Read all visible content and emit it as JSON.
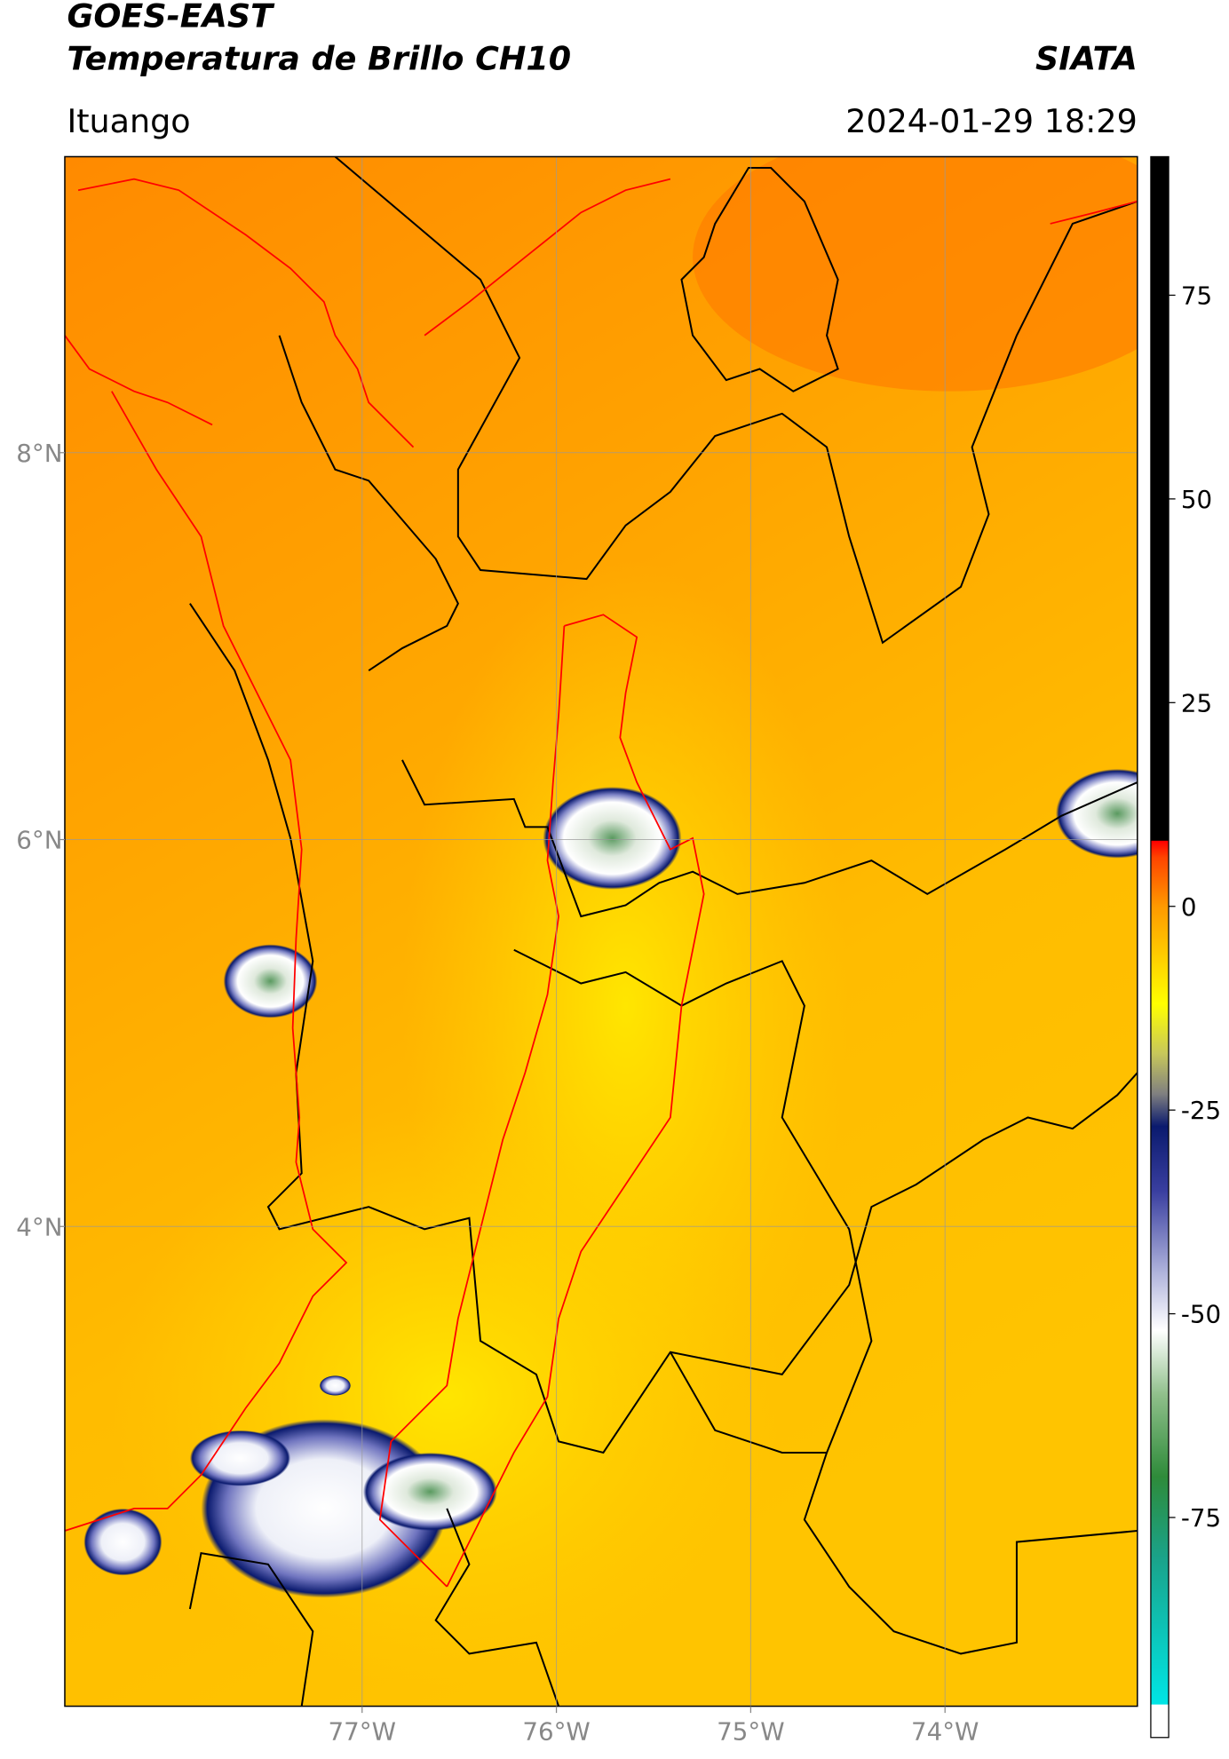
{
  "header": {
    "title": "GOES-EAST",
    "subtitle": "Temperatura de Brillo CH10",
    "brand": "SIATA",
    "location": "Ituango",
    "timestamp": "2024-01-29 18:29"
  },
  "map": {
    "lon_range": [
      -78.53,
      -73.01
    ],
    "lat_range": [
      1.52,
      9.53
    ],
    "lon_ticks": [
      {
        "value": -77,
        "label": "77°W"
      },
      {
        "value": -76,
        "label": "76°W"
      },
      {
        "value": -75,
        "label": "75°W"
      },
      {
        "value": -74,
        "label": "74°W"
      }
    ],
    "lat_ticks": [
      {
        "value": 8,
        "label": "8°N"
      },
      {
        "value": 6,
        "label": "6°N"
      },
      {
        "value": 4,
        "label": "4°N"
      }
    ],
    "grid": true
  },
  "colorbar": {
    "range": [
      -102,
      92
    ],
    "ticks": [
      75,
      50,
      25,
      0,
      -25,
      -50,
      -75
    ],
    "stops": [
      {
        "value": -102,
        "color": "#ffffff"
      },
      {
        "value": -98,
        "color": "#ffffff"
      },
      {
        "value": -97.9,
        "color": "#00e5e5"
      },
      {
        "value": -80,
        "color": "#1aa38a"
      },
      {
        "value": -70,
        "color": "#2e8b3a"
      },
      {
        "value": -60,
        "color": "#8fbf8a"
      },
      {
        "value": -52,
        "color": "#ffffff"
      },
      {
        "value": -45,
        "color": "#b0b4dc"
      },
      {
        "value": -35,
        "color": "#3a3fa0"
      },
      {
        "value": -27,
        "color": "#0a1a6e"
      },
      {
        "value": -23,
        "color": "#808080"
      },
      {
        "value": -18,
        "color": "#c8c85a"
      },
      {
        "value": -12,
        "color": "#ffff00"
      },
      {
        "value": 0,
        "color": "#ff9900"
      },
      {
        "value": 6,
        "color": "#ff4400"
      },
      {
        "value": 8,
        "color": "#ff0000"
      },
      {
        "value": 8.1,
        "color": "#000000"
      },
      {
        "value": 92,
        "color": "#000000"
      }
    ]
  }
}
